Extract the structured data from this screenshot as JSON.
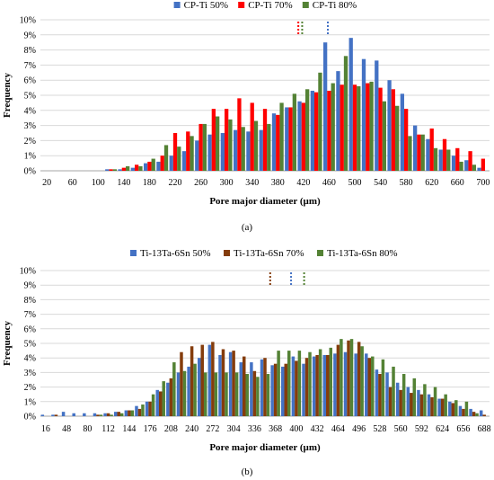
{
  "chart_data": [
    {
      "type": "bar",
      "panel_label": "(a)",
      "xlabel": "Pore major diameter (µm)",
      "ylabel": "Frequency",
      "ylim": [
        0,
        10
      ],
      "yticks": [
        "0%",
        "1%",
        "2%",
        "3%",
        "4%",
        "5%",
        "6%",
        "7%",
        "8%",
        "9%",
        "10%"
      ],
      "grid": "horizontal",
      "legend_position": "top-center",
      "categories": [
        "20",
        "40",
        "60",
        "80",
        "100",
        "120",
        "140",
        "160",
        "180",
        "200",
        "220",
        "240",
        "260",
        "280",
        "300",
        "320",
        "340",
        "360",
        "380",
        "400",
        "420",
        "440",
        "460",
        "480",
        "500",
        "520",
        "540",
        "560",
        "580",
        "600",
        "620",
        "640",
        "660",
        "680",
        "700"
      ],
      "xtick_labels": [
        "20",
        "60",
        "100",
        "140",
        "180",
        "220",
        "260",
        "300",
        "340",
        "380",
        "420",
        "460",
        "500",
        "540",
        "580",
        "620",
        "660",
        "700"
      ],
      "series": [
        {
          "name": "CP-Ti 50%",
          "color": "#4472C4",
          "values": [
            0,
            0,
            0,
            0,
            0,
            0.1,
            0.1,
            0.2,
            0.5,
            0.6,
            1.0,
            1.3,
            2.0,
            2.4,
            2.5,
            2.7,
            2.6,
            2.7,
            3.8,
            4.2,
            4.6,
            5.3,
            8.5,
            6.6,
            8.8,
            7.4,
            7.3,
            6.0,
            5.1,
            3.0,
            2.1,
            1.4,
            1.0,
            0.7,
            0.2
          ]
        },
        {
          "name": "CP-Ti 70%",
          "color": "#FF0000",
          "values": [
            0,
            0,
            0,
            0,
            0,
            0.1,
            0.2,
            0.4,
            0.6,
            1.0,
            2.5,
            2.6,
            3.1,
            4.1,
            4.1,
            4.8,
            4.5,
            4.1,
            3.7,
            4.2,
            4.5,
            5.2,
            5.3,
            5.7,
            5.7,
            5.8,
            5.5,
            5.4,
            4.1,
            2.4,
            2.8,
            2.1,
            1.5,
            1.3,
            0.8
          ]
        },
        {
          "name": "CP-Ti 80%",
          "color": "#548235",
          "values": [
            0,
            0,
            0,
            0,
            0,
            0.1,
            0.3,
            0.3,
            0.8,
            1.7,
            1.6,
            2.3,
            3.1,
            3.6,
            3.4,
            2.9,
            3.3,
            3.1,
            4.5,
            5.1,
            5.4,
            6.5,
            5.8,
            7.6,
            5.6,
            5.9,
            4.6,
            4.3,
            2.3,
            2.4,
            1.5,
            1.4,
            0.6,
            0.4,
            0
          ]
        }
      ],
      "vlines": [
        {
          "x": 412,
          "color": "#FF0000"
        },
        {
          "x": 418,
          "color": "#548235"
        },
        {
          "x": 458,
          "color": "#4472C4"
        }
      ]
    },
    {
      "type": "bar",
      "panel_label": "(b)",
      "xlabel": "Pore major diameter (µm)",
      "ylabel": "Frequency",
      "ylim": [
        0,
        10
      ],
      "yticks": [
        "0%",
        "1%",
        "2%",
        "3%",
        "4%",
        "5%",
        "6%",
        "7%",
        "8%",
        "9%",
        "10%"
      ],
      "grid": "horizontal",
      "legend_position": "top-center",
      "categories": [
        "16",
        "32",
        "48",
        "64",
        "80",
        "96",
        "112",
        "128",
        "144",
        "160",
        "176",
        "192",
        "208",
        "224",
        "240",
        "256",
        "272",
        "288",
        "304",
        "320",
        "336",
        "352",
        "368",
        "384",
        "400",
        "416",
        "432",
        "448",
        "464",
        "480",
        "496",
        "512",
        "528",
        "544",
        "560",
        "576",
        "592",
        "608",
        "624",
        "640",
        "656",
        "672",
        "688"
      ],
      "xtick_labels": [
        "16",
        "48",
        "80",
        "112",
        "144",
        "176",
        "208",
        "240",
        "272",
        "304",
        "336",
        "368",
        "400",
        "432",
        "464",
        "496",
        "528",
        "560",
        "592",
        "624",
        "656",
        "688"
      ],
      "series": [
        {
          "name": "Ti-13Ta-6Sn 50%",
          "color": "#4472C4",
          "values": [
            0.1,
            0.1,
            0.3,
            0.2,
            0.2,
            0.2,
            0.2,
            0.3,
            0.4,
            0.7,
            1.0,
            1.8,
            2.3,
            3.0,
            3.4,
            4.0,
            4.9,
            4.2,
            4.4,
            3.7,
            3.7,
            3.9,
            3.5,
            3.4,
            4.1,
            3.6,
            4.1,
            4.2,
            4.3,
            4.4,
            4.3,
            4.3,
            3.2,
            3.0,
            2.3,
            2.0,
            1.8,
            1.5,
            1.2,
            1.0,
            0.7,
            0.5,
            0.4
          ]
        },
        {
          "name": "Ti-13Ta-6Sn 70%",
          "color": "#843C0C",
          "values": [
            0,
            0.1,
            0,
            0,
            0,
            0.1,
            0.2,
            0.3,
            0.4,
            0.5,
            1.0,
            1.7,
            2.6,
            4.4,
            4.8,
            4.9,
            5.1,
            4.6,
            4.5,
            4.1,
            3.1,
            4.0,
            3.6,
            3.6,
            3.8,
            4.0,
            4.2,
            4.2,
            4.9,
            5.2,
            5.1,
            4.0,
            2.9,
            2.0,
            1.8,
            1.6,
            1.5,
            1.3,
            1.2,
            0.9,
            0.5,
            0.3,
            0.1
          ]
        },
        {
          "name": "Ti-13Ta-6Sn 80%",
          "color": "#548235",
          "values": [
            0,
            0,
            0,
            0,
            0,
            0.1,
            0.1,
            0.2,
            0.4,
            0.8,
            1.5,
            2.4,
            3.7,
            3.1,
            3.6,
            3.0,
            3.0,
            3.0,
            3.0,
            2.9,
            2.7,
            2.9,
            4.5,
            4.5,
            4.5,
            4.4,
            4.6,
            4.7,
            5.3,
            5.3,
            4.8,
            4.1,
            3.9,
            3.4,
            2.9,
            2.6,
            2.2,
            2.0,
            1.5,
            1.1,
            1.0,
            0.2,
            0
          ]
        }
      ],
      "vlines": [
        {
          "x": 360,
          "color": "#843C0C"
        },
        {
          "x": 392,
          "color": "#4472C4"
        },
        {
          "x": 412,
          "color": "#548235"
        }
      ]
    }
  ]
}
